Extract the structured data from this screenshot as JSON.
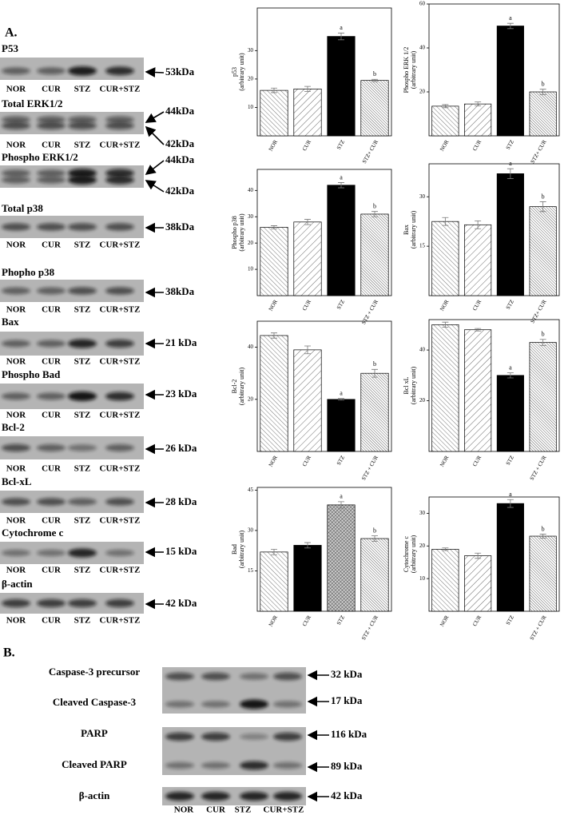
{
  "panel_a": {
    "label": "A.",
    "blots": [
      {
        "name": "P53",
        "markers": [
          "53kDa"
        ],
        "lanes": [
          "NOR",
          "CUR",
          "STZ",
          "CUR+STZ"
        ]
      },
      {
        "name": "Total ERK1/2",
        "markers": [
          "44kDa",
          "42kDa"
        ],
        "lanes": [
          "NOR",
          "CUR",
          "STZ",
          "CUR+STZ"
        ]
      },
      {
        "name": "Phospho ERK1/2",
        "markers": [
          "44kDa",
          "42kDa"
        ]
      },
      {
        "name": "Total p38",
        "markers": [
          "38kDa"
        ],
        "lanes": [
          "NOR",
          "CUR",
          "STZ",
          "CUR+STZ"
        ]
      },
      {
        "name": "Phopho p38",
        "markers": [
          "38kDa"
        ],
        "lanes": [
          "NOR",
          "CUR",
          "STZ",
          "CUR+STZ"
        ]
      },
      {
        "name": "Bax",
        "markers": [
          "21 kDa"
        ],
        "lanes": [
          "NOR",
          "CUR",
          "STZ",
          "CUR+STZ"
        ]
      },
      {
        "name": "Phospho Bad",
        "markers": [
          "23 kDa"
        ],
        "lanes": [
          "NOR",
          "CUR",
          "STZ",
          "CUR+STZ"
        ]
      },
      {
        "name": "Bcl-2",
        "markers": [
          "26 kDa"
        ],
        "lanes": [
          "NOR",
          "CUR",
          "STZ",
          "CUR+STZ"
        ]
      },
      {
        "name": "Bcl-xL",
        "markers": [
          "28 kDa"
        ],
        "lanes": [
          "NOR",
          "CUR",
          "STZ",
          "CUR+STZ"
        ]
      },
      {
        "name": "Cytochrome c",
        "markers": [
          "15 kDa"
        ],
        "lanes": [
          "NOR",
          "CUR",
          "STZ",
          "CUR+STZ"
        ]
      },
      {
        "name": "β-actin",
        "markers": [
          "42 kDa"
        ],
        "lanes": [
          "NOR",
          "CUR",
          "STZ",
          "CUR+STZ"
        ]
      }
    ]
  },
  "panel_b": {
    "label": "B.",
    "lanes": [
      "NOR",
      "CUR",
      "STZ",
      "CUR+STZ"
    ],
    "blots": [
      {
        "names": [
          "Caspase-3 precursor",
          "Cleaved Caspase-3"
        ],
        "markers": [
          "32 kDa",
          "17 kDa"
        ]
      },
      {
        "names": [
          "PARP",
          "Cleaved PARP"
        ],
        "markers": [
          "116 kDa",
          "89 kDa"
        ]
      },
      {
        "names": [
          "β-actin"
        ],
        "markers": [
          "42 kDa"
        ]
      }
    ]
  },
  "chart_data": [
    {
      "type": "bar",
      "y_label": "p53",
      "y_unit": "(arbitrary unit)",
      "categories": [
        "NOR",
        "CUR",
        "STZ",
        "STZ+ CUR"
      ],
      "values": [
        16,
        16.5,
        35,
        19.5
      ],
      "errors": [
        0.8,
        0.9,
        1.2,
        0.4
      ],
      "bar_labels": [
        null,
        null,
        "a",
        "b"
      ],
      "fills": [
        "hatch",
        "hatch-wide",
        "#000000",
        "hatch-dense"
      ],
      "ylim": [
        0,
        45
      ],
      "yticks": [
        10,
        20,
        30
      ]
    },
    {
      "type": "bar",
      "y_label": "Phospho ERK 1/2",
      "y_unit": "(arbitrary unit)",
      "categories": [
        "NOR",
        "CUR",
        "STZ",
        "STZ+ CUR"
      ],
      "values": [
        13.5,
        14.5,
        50,
        20
      ],
      "errors": [
        0.7,
        0.9,
        1.2,
        1.2
      ],
      "bar_labels": [
        null,
        null,
        "a",
        "b"
      ],
      "fills": [
        "hatch",
        "hatch-wide",
        "#000000",
        "hatch-dense"
      ],
      "ylim": [
        0,
        60
      ],
      "yticks": [
        20,
        40,
        60
      ]
    },
    {
      "type": "bar",
      "y_label": "Phospho p38",
      "y_unit": "(arbitrary unit)",
      "categories": [
        "NOR",
        "CUR",
        "STZ",
        "STZ + CUR"
      ],
      "values": [
        26,
        28,
        42,
        31
      ],
      "errors": [
        0.6,
        1,
        1,
        1
      ],
      "bar_labels": [
        null,
        null,
        "a",
        "b"
      ],
      "fills": [
        "hatch",
        "hatch-wide",
        "#000000",
        "hatch-dense"
      ],
      "ylim": [
        0,
        48
      ],
      "yticks": [
        10,
        20,
        30,
        40
      ]
    },
    {
      "type": "bar",
      "y_label": "Bax",
      "y_unit": "(arbitrary unit)",
      "categories": [
        "NOR",
        "CUR",
        "STZ",
        "STZ+ CUR"
      ],
      "values": [
        22.5,
        21.5,
        37,
        27
      ],
      "errors": [
        1.2,
        1.2,
        1.5,
        1.5
      ],
      "bar_labels": [
        null,
        null,
        "a",
        "b"
      ],
      "fills": [
        "hatch",
        "hatch-wide",
        "#000000",
        "hatch-dense"
      ],
      "ylim": [
        0,
        40
      ],
      "yticks": [
        15,
        30
      ]
    },
    {
      "type": "bar",
      "y_label": "Bcl-2",
      "y_unit": "(arbitrary unit)",
      "categories": [
        "NOR",
        "CUR",
        "STZ",
        "STZ + CUR"
      ],
      "values": [
        44.5,
        39,
        20,
        30
      ],
      "errors": [
        1,
        1.5,
        0.3,
        1.5
      ],
      "bar_labels": [
        null,
        null,
        "a",
        "b"
      ],
      "fills": [
        "hatch",
        "hatch-wide",
        "#000000",
        "hatch-dense"
      ],
      "ylim": [
        0,
        50
      ],
      "yticks": [
        20,
        40
      ]
    },
    {
      "type": "bar",
      "y_label": "Bcl xL",
      "y_unit": "(arbitrary unit)",
      "categories": [
        "NOR",
        "CUR",
        "STZ",
        "STZ + CUR"
      ],
      "values": [
        50,
        48,
        30,
        43
      ],
      "errors": [
        1,
        0.5,
        1,
        1.2
      ],
      "bar_labels": [
        null,
        null,
        "a",
        "b"
      ],
      "fills": [
        "hatch",
        "hatch-wide",
        "#000000",
        "hatch-dense"
      ],
      "ylim": [
        0,
        52
      ],
      "yticks": [
        20,
        40
      ]
    },
    {
      "type": "bar",
      "y_label": "Bad",
      "y_unit": "(arbitrary unit)",
      "categories": [
        "NOR",
        "CUR",
        "STZ",
        "STZ + CUR"
      ],
      "values": [
        22,
        24.5,
        39.5,
        27
      ],
      "errors": [
        1,
        1,
        1.2,
        1
      ],
      "bar_labels": [
        null,
        null,
        "a",
        "b"
      ],
      "fills": [
        "hatch",
        "#000000",
        "crosshatch",
        "hatch-dense"
      ],
      "ylim": [
        0,
        46
      ],
      "yticks": [
        15,
        30,
        45
      ]
    },
    {
      "type": "bar",
      "y_label": "Cytochrome c",
      "y_unit": "(arbitrary unit)",
      "categories": [
        "NOR",
        "CUR",
        "STZ",
        "STZ + CUR"
      ],
      "values": [
        19,
        17,
        33,
        23
      ],
      "errors": [
        0.4,
        0.8,
        1.2,
        0.6
      ],
      "bar_labels": [
        null,
        null,
        "a",
        "b"
      ],
      "fills": [
        "hatch",
        "hatch-wide",
        "#000000",
        "hatch-dense"
      ],
      "ylim": [
        0,
        35
      ],
      "yticks": [
        10,
        20,
        30
      ]
    }
  ]
}
